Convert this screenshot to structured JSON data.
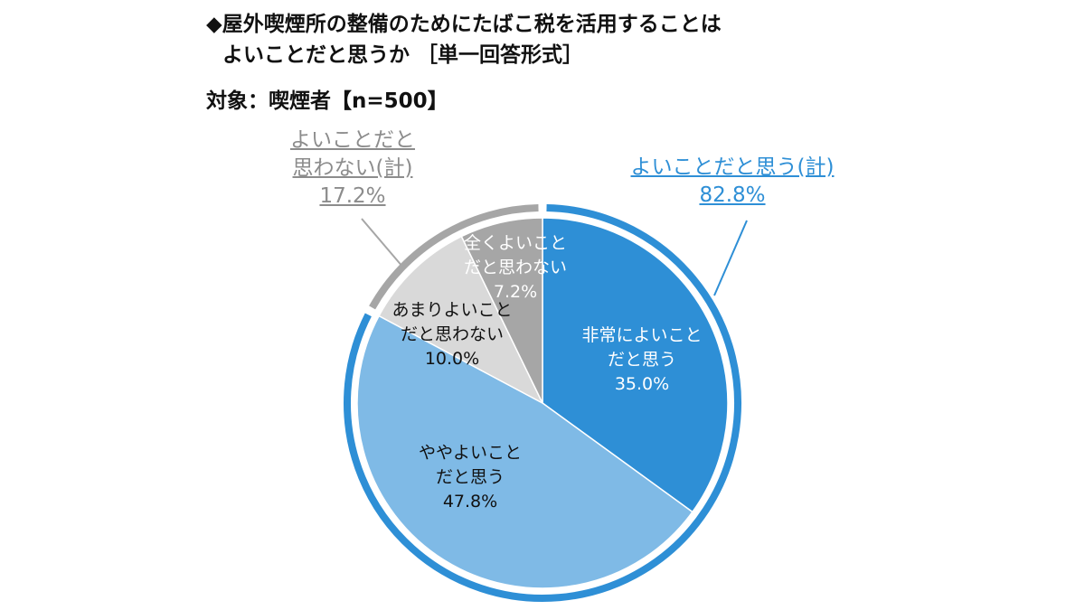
{
  "title_line1": "◆屋外喫煙所の整備のためにたばこ税を活用することは",
  "title_line2": "よいことだと思うか ［単一回答形式］",
  "subtitle": "対象：喫煙者【n=500】",
  "chart_data": {
    "type": "pie",
    "slices": [
      {
        "label_line1": "非常によいこと",
        "label_line2": "だと思う",
        "value": 35.0,
        "value_text": "35.0%",
        "color": "#2e8fd6"
      },
      {
        "label_line1": "ややよいこと",
        "label_line2": "だと思う",
        "value": 47.8,
        "value_text": "47.8%",
        "color": "#7fbae6"
      },
      {
        "label_line1": "あまりよいこと",
        "label_line2": "だと思わない",
        "value": 10.0,
        "value_text": "10.0%",
        "color": "#d9d9d9"
      },
      {
        "label_line1": "全くよいこと",
        "label_line2": "だと思わない",
        "value": 7.2,
        "value_text": "7.2%",
        "color": "#a6a6a6"
      }
    ],
    "groups": [
      {
        "label_line1": "よいことだと思う(計)",
        "value": 82.8,
        "value_text": "82.8%",
        "color": "#2e8fd6"
      },
      {
        "label_line1": "よいことだと",
        "label_line2": "思わない(計)",
        "value": 17.2,
        "value_text": "17.2%",
        "color": "#a6a6a6"
      }
    ]
  }
}
